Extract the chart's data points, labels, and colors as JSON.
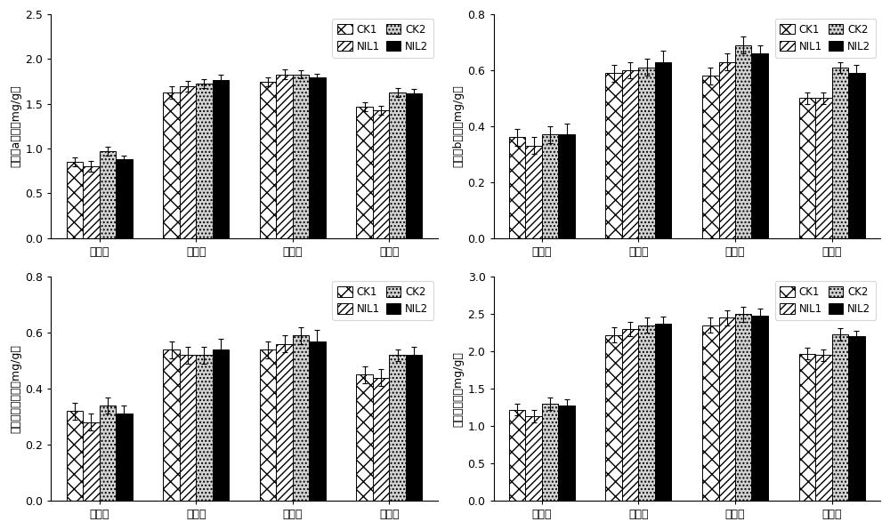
{
  "subplots": [
    {
      "ylabel": "叶绿素a含量（mg/g）",
      "ylim": [
        0.0,
        2.5
      ],
      "yticks": [
        0.0,
        0.5,
        1.0,
        1.5,
        2.0,
        2.5
      ],
      "categories": [
        "假植期",
        "团棵期",
        "旺长期",
        "现蓓期"
      ],
      "values": {
        "CK1": [
          0.85,
          1.63,
          1.75,
          1.47
        ],
        "NIL1": [
          0.8,
          1.7,
          1.83,
          1.43
        ],
        "CK2": [
          0.97,
          1.73,
          1.83,
          1.63
        ],
        "NIL2": [
          0.88,
          1.77,
          1.8,
          1.62
        ]
      },
      "errors": {
        "CK1": [
          0.05,
          0.07,
          0.05,
          0.05
        ],
        "NIL1": [
          0.06,
          0.06,
          0.05,
          0.05
        ],
        "CK2": [
          0.05,
          0.05,
          0.04,
          0.05
        ],
        "NIL2": [
          0.04,
          0.06,
          0.04,
          0.05
        ]
      }
    },
    {
      "ylabel": "叶绿素b含量（mg/g）",
      "ylim": [
        0.0,
        0.8
      ],
      "yticks": [
        0.0,
        0.2,
        0.4,
        0.6,
        0.8
      ],
      "categories": [
        "假植期",
        "团棵期",
        "旺长期",
        "现蓓期"
      ],
      "values": {
        "CK1": [
          0.36,
          0.59,
          0.58,
          0.5
        ],
        "NIL1": [
          0.33,
          0.6,
          0.63,
          0.5
        ],
        "CK2": [
          0.37,
          0.61,
          0.69,
          0.61
        ],
        "NIL2": [
          0.37,
          0.63,
          0.66,
          0.59
        ]
      },
      "errors": {
        "CK1": [
          0.03,
          0.03,
          0.03,
          0.02
        ],
        "NIL1": [
          0.03,
          0.03,
          0.03,
          0.02
        ],
        "CK2": [
          0.03,
          0.03,
          0.03,
          0.02
        ],
        "NIL2": [
          0.04,
          0.04,
          0.03,
          0.03
        ]
      }
    },
    {
      "ylabel": "类胡萝卜素含量（mg/g）",
      "ylim": [
        0.0,
        0.8
      ],
      "yticks": [
        0.0,
        0.2,
        0.4,
        0.6,
        0.8
      ],
      "categories": [
        "假植期",
        "团棵期",
        "旺长期",
        "现蓓期"
      ],
      "values": {
        "CK1": [
          0.32,
          0.54,
          0.54,
          0.45
        ],
        "NIL1": [
          0.28,
          0.52,
          0.56,
          0.44
        ],
        "CK2": [
          0.34,
          0.52,
          0.59,
          0.52
        ],
        "NIL2": [
          0.31,
          0.54,
          0.57,
          0.52
        ]
      },
      "errors": {
        "CK1": [
          0.03,
          0.03,
          0.03,
          0.03
        ],
        "NIL1": [
          0.03,
          0.03,
          0.03,
          0.03
        ],
        "CK2": [
          0.03,
          0.03,
          0.03,
          0.02
        ],
        "NIL2": [
          0.03,
          0.04,
          0.04,
          0.03
        ]
      }
    },
    {
      "ylabel": "叶绿素含量（mg/g）",
      "ylim": [
        0.0,
        3.0
      ],
      "yticks": [
        0.0,
        0.5,
        1.0,
        1.5,
        2.0,
        2.5,
        3.0
      ],
      "categories": [
        "假植期",
        "团棵期",
        "旺长期",
        "现蓓期"
      ],
      "values": {
        "CK1": [
          1.22,
          2.22,
          2.35,
          1.97
        ],
        "NIL1": [
          1.13,
          2.3,
          2.45,
          1.95
        ],
        "CK2": [
          1.3,
          2.35,
          2.5,
          2.23
        ],
        "NIL2": [
          1.28,
          2.37,
          2.48,
          2.2
        ]
      },
      "errors": {
        "CK1": [
          0.08,
          0.1,
          0.1,
          0.08
        ],
        "NIL1": [
          0.08,
          0.1,
          0.1,
          0.08
        ],
        "CK2": [
          0.08,
          0.1,
          0.1,
          0.08
        ],
        "NIL2": [
          0.08,
          0.1,
          0.1,
          0.08
        ]
      }
    }
  ],
  "series": [
    "CK1",
    "NIL1",
    "CK2",
    "NIL2"
  ],
  "hatch_patterns": [
    "xx",
    "////",
    "....",
    ""
  ],
  "face_colors": [
    "white",
    "white",
    "lightgray",
    "black"
  ],
  "edge_colors": [
    "black",
    "black",
    "black",
    "black"
  ],
  "bar_width": 0.17,
  "legend_labels": [
    "CK1",
    "NIL1",
    "CK2",
    "NIL2"
  ],
  "background_color": "white"
}
